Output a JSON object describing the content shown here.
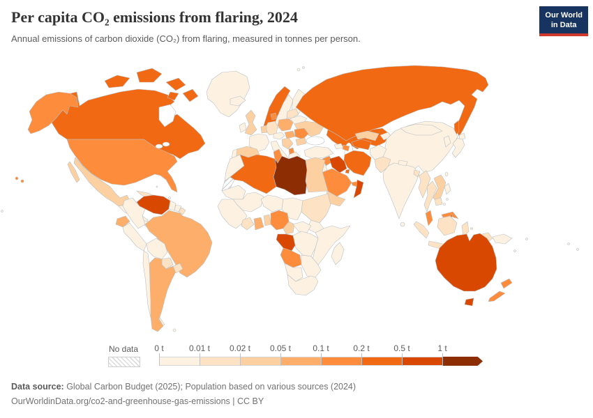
{
  "header": {
    "title": "Per capita CO₂ emissions from flaring, 2024",
    "subtitle": "Annual emissions of carbon dioxide (CO₂) from flaring, measured in tonnes per person."
  },
  "logo": {
    "line1": "Our World",
    "line2": "in Data",
    "bg": "#16345f",
    "accent": "#d0392e"
  },
  "chart_data": {
    "type": "choropleth",
    "title": "Per capita CO₂ emissions from flaring",
    "year": "2024",
    "unit": "tonnes per person",
    "legend": {
      "no_data_label": "No data"
    },
    "bins": [
      {
        "label": "0 t",
        "range": "0–0.01 t",
        "color": "#fdf1e1"
      },
      {
        "label": "0.01 t",
        "range": "0.01–0.02 t",
        "color": "#fde3c3"
      },
      {
        "label": "0.02 t",
        "range": "0.02–0.05 t",
        "color": "#fdd0a2"
      },
      {
        "label": "0.05 t",
        "range": "0.05–0.1 t",
        "color": "#fdae6b"
      },
      {
        "label": "0.1 t",
        "range": "0.1–0.2 t",
        "color": "#fd8d3c"
      },
      {
        "label": "0.2 t",
        "range": "0.2–0.5 t",
        "color": "#f16913"
      },
      {
        "label": "0.5 t",
        "range": "0.5–1 t",
        "color": "#d94801"
      },
      {
        "label": "1 t",
        "range": "≥1 t",
        "color": "#8c2d04"
      }
    ],
    "no_data_color_pattern": "diagonal-hatch",
    "countries": {
      "greenland": 0,
      "canada": 5,
      "canadian-arctic": 5,
      "alaska": 4,
      "usa": 4,
      "mexico": 2,
      "central-america": 0,
      "nicaragua": 1,
      "panama-costa-rica": 0,
      "cuba": 1,
      "hispaniola": 0,
      "caribbean-islands": 0,
      "venezuela": 6,
      "colombia": 0,
      "guyana": 0,
      "suriname": 0,
      "french-guiana": 1,
      "ecuador": 3,
      "peru": 0,
      "brazil": 3,
      "bolivia": 0,
      "paraguay": 1,
      "chile": 0,
      "argentina": 3,
      "uruguay": 1,
      "falkland-islands": 0,
      "iceland": 0,
      "norway": 5,
      "sweden": 0,
      "finland": 0,
      "united-kingdom": 2,
      "ireland": 0,
      "france": 0,
      "spain": 2,
      "portugal": 0,
      "germany": 1,
      "denmark": 4,
      "benelux": 2,
      "poland": 3,
      "central-europe": 0,
      "italy": 0,
      "balkans": 2,
      "albania": 4,
      "greece": 0,
      "hungary": 3,
      "romania": 4,
      "bulgaria": 2,
      "ukraine": 2,
      "belarus": 0,
      "baltics": 1,
      "svalbard": 0,
      "russia": 5,
      "kazakhstan": 5,
      "turkmenistan": 5,
      "uzbekistan": 2,
      "kyrgyzstan-tajikistan": 0,
      "georgia-armenia": 0,
      "azerbaijan": 4,
      "turkey": 0,
      "syria": 4,
      "levant": 0,
      "iraq": 6,
      "iran": 5,
      "saudi-arabia": 4,
      "kuwait": 5,
      "uae-qatar": 4,
      "oman": 6,
      "yemen": 2,
      "morocco": 0,
      "algeria": 5,
      "tunisia": 4,
      "libya": 7,
      "egypt": 2,
      "mauritania": 0,
      "mali": 0,
      "niger": 0,
      "chad": 0,
      "sudan": 1,
      "south-sudan": 0,
      "west-africa": 0,
      "ivory-coast": 1,
      "ghana": 3,
      "benin-togo": 2,
      "nigeria": 4,
      "cameroon": 2,
      "central-african-republic": 0,
      "gabon-congo": 6,
      "drc": 0,
      "east-africa": 0,
      "angola": 4,
      "southeast-africa": 0,
      "namibia-botswana": 0,
      "south-africa": 0,
      "madagascar": 0,
      "afghanistan": 0,
      "pakistan": 1,
      "india": 0,
      "nepal": 0,
      "bangladesh": 1,
      "sri-lanka": 0,
      "china": 0,
      "mongolia": 0,
      "south-korea": 0,
      "japan": 0,
      "taiwan": 0,
      "myanmar": 1,
      "thailand": 1,
      "vietnam": 2,
      "cambodia": 1,
      "malaysia": 4,
      "brunei": 5,
      "indonesia": 1,
      "philippines": 0,
      "timor": 1,
      "papua-new-guinea": 0,
      "australia": 6,
      "new-zealand": 4,
      "pacific-islands": 0,
      "small-island": 0
    },
    "no_data_regions": [
      "western-sahara"
    ]
  },
  "footer": {
    "datasource_label": "Data source:",
    "datasource_text": " Global Carbon Budget (2025); Population based on various sources (2024)",
    "link": "OurWorldinData.org/co2-and-greenhouse-gas-emissions",
    "separator": " | ",
    "license": "CC BY"
  }
}
